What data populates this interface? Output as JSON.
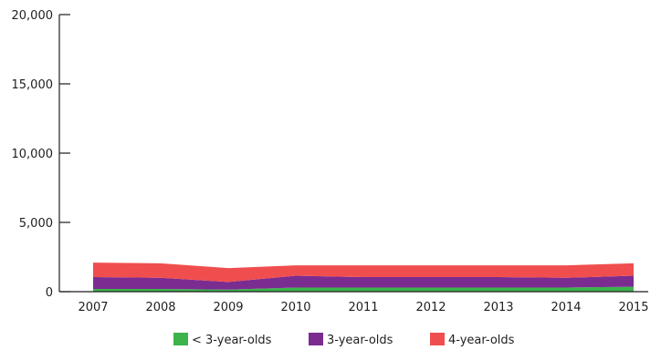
{
  "chart_data": {
    "type": "area",
    "stacked": true,
    "categories": [
      "2007",
      "2008",
      "2009",
      "2010",
      "2011",
      "2012",
      "2013",
      "2014",
      "2015"
    ],
    "series": [
      {
        "name": "< 3-year-olds",
        "color": "#3cb44b",
        "values": [
          200,
          200,
          150,
          300,
          300,
          300,
          300,
          300,
          350
        ]
      },
      {
        "name": "3-year-olds",
        "color": "#7b2c91",
        "values": [
          850,
          800,
          550,
          850,
          750,
          750,
          750,
          700,
          800
        ]
      },
      {
        "name": "4-year-olds",
        "color": "#f04e4e",
        "values": [
          1050,
          1050,
          1000,
          750,
          850,
          850,
          850,
          900,
          900
        ]
      }
    ],
    "ylim": [
      0,
      20000
    ],
    "yticks": [
      0,
      5000,
      10000,
      15000,
      20000
    ],
    "ytick_labels": [
      "0",
      "5,000",
      "10,000",
      "15,000",
      "20,000"
    ],
    "grid": false,
    "legend_position": "bottom",
    "title": "",
    "xlabel": "",
    "ylabel": ""
  }
}
